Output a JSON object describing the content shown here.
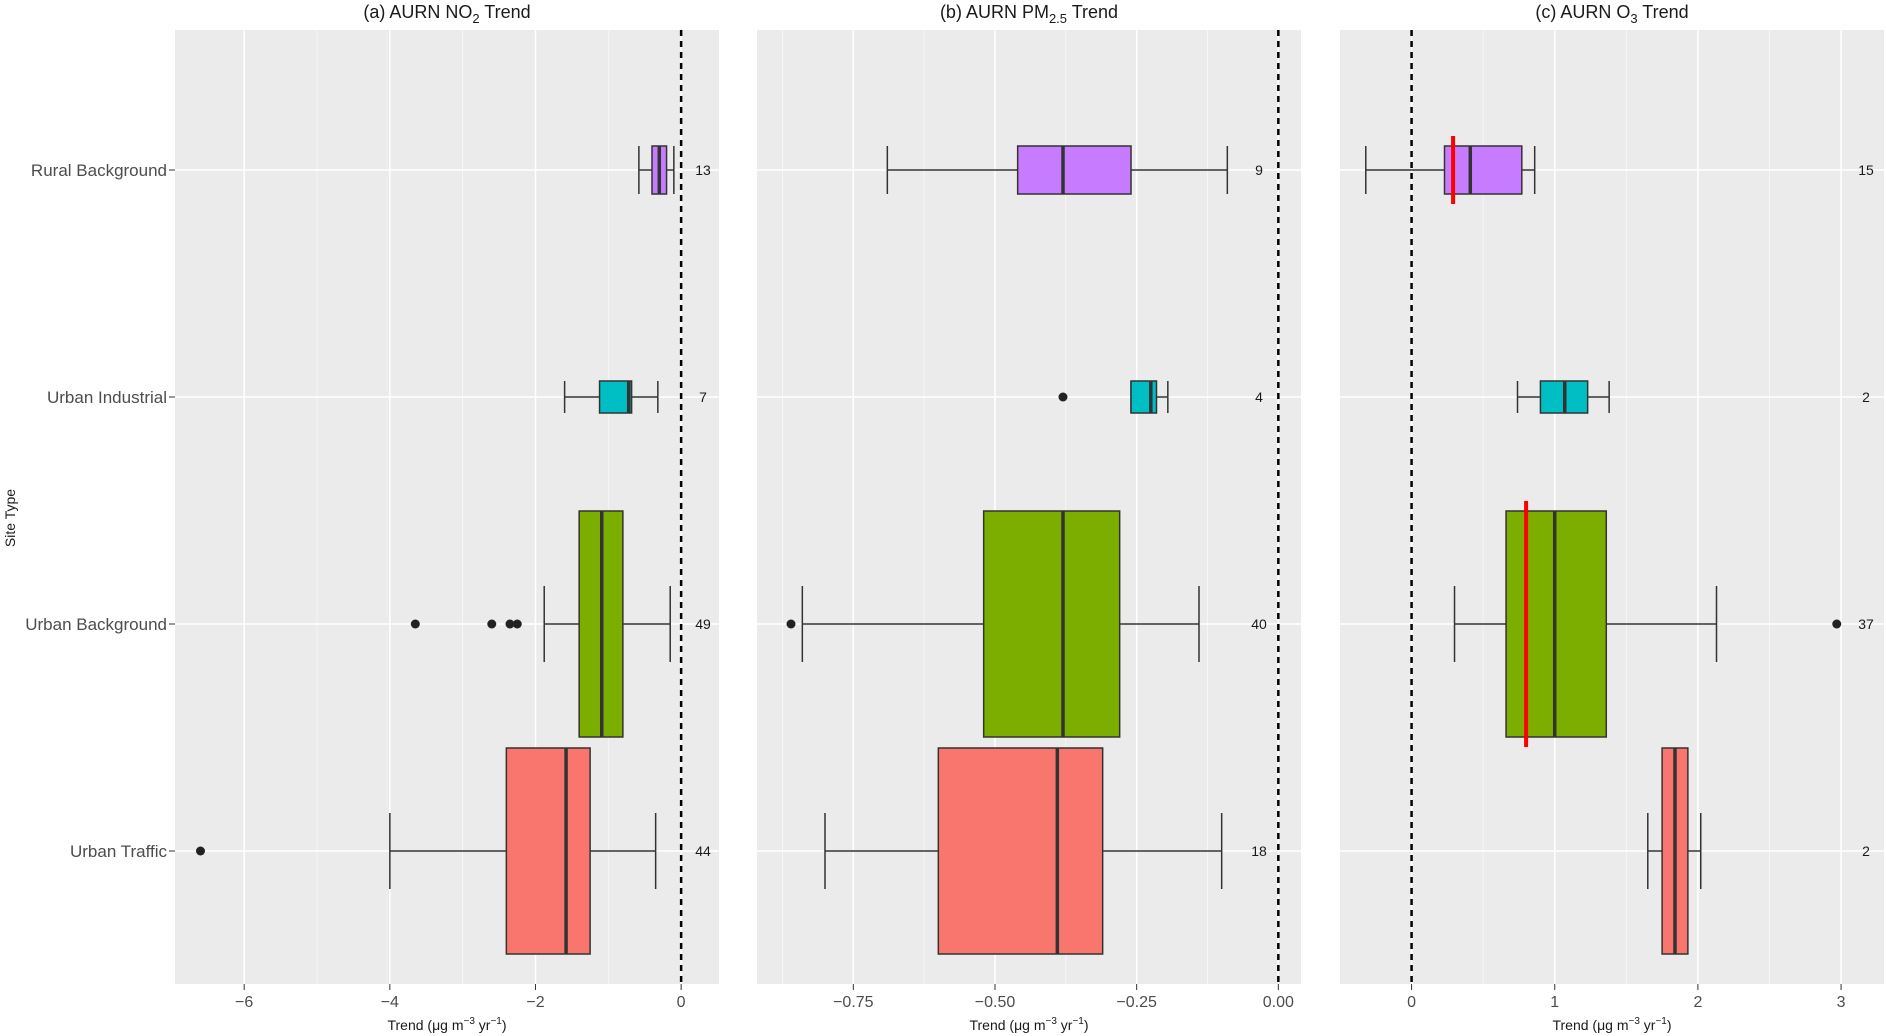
{
  "chart_data": {
    "y_axis_label": "Site Type",
    "categories": [
      "Rural Background",
      "Urban Industrial",
      "Urban Background",
      "Urban Traffic"
    ],
    "colors": {
      "Rural Background": "#C77CFF",
      "Urban Industrial": "#00BFC4",
      "Urban Background": "#7CAE00",
      "Urban Traffic": "#F8766D",
      "panel_background": "#EBEBEB",
      "grid": "#FFFFFF",
      "reference_line": "#FF0000"
    },
    "panels": [
      {
        "type": "boxplot",
        "title": "(a) AURN NO",
        "title_sub": "2",
        "title_end": " Trend",
        "xlabel": "Trend (μg m",
        "xlabel_sup": "−3",
        "xlabel_mid": " yr",
        "xlabel_sup2": "−1",
        "xlabel_end": ")",
        "xlim": [
          -6.95,
          0.52
        ],
        "xticks": [
          -6,
          -4,
          -2,
          0
        ],
        "xtick_labels": [
          "−6",
          "−4",
          "−2",
          "0"
        ],
        "zero_line": 0,
        "boxes": [
          {
            "category": "Rural Background",
            "whisker_low": -0.58,
            "q1": -0.4,
            "median": -0.3,
            "q3": -0.2,
            "whisker_high": -0.1,
            "outliers": [],
            "n": "13"
          },
          {
            "category": "Urban Industrial",
            "whisker_low": -1.6,
            "q1": -1.12,
            "median": -0.72,
            "q3": -0.68,
            "whisker_high": -0.32,
            "outliers": [],
            "n": "7"
          },
          {
            "category": "Urban Background",
            "whisker_low": -1.88,
            "q1": -1.4,
            "median": -1.09,
            "q3": -0.8,
            "whisker_high": -0.15,
            "outliers": [
              -3.65,
              -2.6,
              -2.35,
              -2.25
            ],
            "n": "49"
          },
          {
            "category": "Urban Traffic",
            "whisker_low": -4.0,
            "q1": -2.4,
            "median": -1.58,
            "q3": -1.25,
            "whisker_high": -0.35,
            "outliers": [
              -6.6
            ],
            "n": "44"
          }
        ],
        "reference_lines": []
      },
      {
        "type": "boxplot",
        "title": "(b) AURN PM",
        "title_sub": "2.5",
        "title_end": " Trend",
        "xlabel": "Trend (μg m",
        "xlabel_sup": "−3",
        "xlabel_mid": " yr",
        "xlabel_sup2": "−1",
        "xlabel_end": ")",
        "xlim": [
          -0.92,
          0.04
        ],
        "xticks": [
          -0.75,
          -0.5,
          -0.25,
          0.0
        ],
        "xtick_labels": [
          "−0.75",
          "−0.50",
          "−0.25",
          "0.00"
        ],
        "zero_line": 0,
        "boxes": [
          {
            "category": "Rural Background",
            "whisker_low": -0.69,
            "q1": -0.46,
            "median": -0.38,
            "q3": -0.26,
            "whisker_high": -0.09,
            "outliers": [],
            "n": "9"
          },
          {
            "category": "Urban Industrial",
            "whisker_low": -0.26,
            "q1": -0.26,
            "median": -0.225,
            "q3": -0.215,
            "whisker_high": -0.195,
            "outliers": [
              -0.38
            ],
            "n": "4"
          },
          {
            "category": "Urban Background",
            "whisker_low": -0.84,
            "q1": -0.52,
            "median": -0.38,
            "q3": -0.28,
            "whisker_high": -0.14,
            "outliers": [
              -0.86
            ],
            "n": "40"
          },
          {
            "category": "Urban Traffic",
            "whisker_low": -0.8,
            "q1": -0.6,
            "median": -0.39,
            "q3": -0.31,
            "whisker_high": -0.1,
            "outliers": [],
            "n": "18"
          }
        ],
        "reference_lines": []
      },
      {
        "type": "boxplot",
        "title": "(c) AURN O",
        "title_sub": "3",
        "title_end": " Trend",
        "xlabel": "Trend (μg m",
        "xlabel_sup": "−3",
        "xlabel_mid": " yr",
        "xlabel_sup2": "−1",
        "xlabel_end": ")",
        "xlim": [
          -0.5,
          3.3
        ],
        "xticks": [
          0,
          1,
          2,
          3
        ],
        "xtick_labels": [
          "0",
          "1",
          "2",
          "3"
        ],
        "zero_line": 0,
        "boxes": [
          {
            "category": "Rural Background",
            "whisker_low": -0.32,
            "q1": 0.23,
            "median": 0.41,
            "q3": 0.77,
            "whisker_high": 0.86,
            "outliers": [],
            "n": "15"
          },
          {
            "category": "Urban Industrial",
            "whisker_low": 0.74,
            "q1": 0.9,
            "median": 1.07,
            "q3": 1.23,
            "whisker_high": 1.38,
            "outliers": [],
            "n": "2"
          },
          {
            "category": "Urban Background",
            "whisker_low": 0.3,
            "q1": 0.66,
            "median": 1.0,
            "q3": 1.36,
            "whisker_high": 2.13,
            "outliers": [
              2.97
            ],
            "n": "37"
          },
          {
            "category": "Urban Traffic",
            "whisker_low": 1.65,
            "q1": 1.75,
            "median": 1.84,
            "q3": 1.93,
            "whisker_high": 2.02,
            "outliers": [],
            "n": "2"
          }
        ],
        "reference_lines": [
          {
            "category": "Rural Background",
            "value": 0.29
          },
          {
            "category": "Urban Background",
            "value": 0.8
          }
        ]
      }
    ]
  }
}
